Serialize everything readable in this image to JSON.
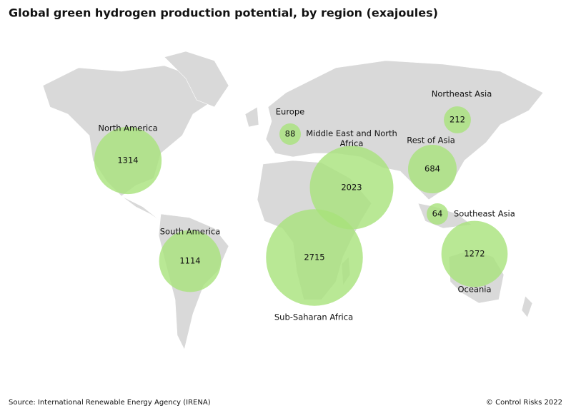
{
  "chart_data": {
    "type": "bubble-map",
    "title": "Global green hydrogen production potential, by region (exajoules)",
    "categories": [
      "North America",
      "Europe",
      "Middle East and North Africa",
      "Rest of Asia",
      "Northeast Asia",
      "Southeast Asia",
      "Sub-Saharan Africa",
      "South America",
      "Oceania"
    ],
    "values": [
      1314,
      88,
      2023,
      684,
      212,
      64,
      2715,
      1114,
      1272
    ],
    "color": "#a8e27a",
    "source": "Source: International Renewable Energy Agency (IRENA)",
    "copyright": "© Control Risks 2022"
  }
}
